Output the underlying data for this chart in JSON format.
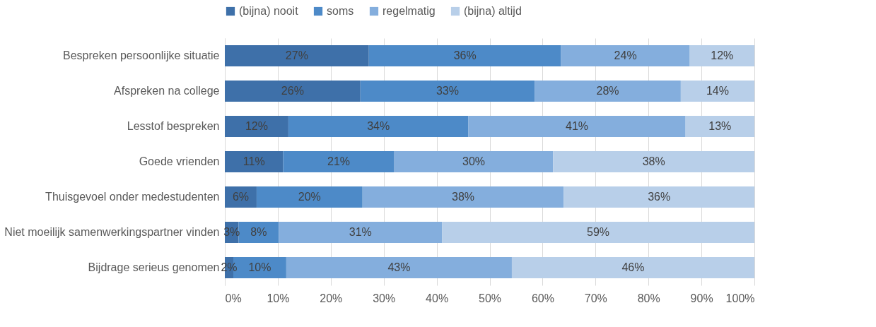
{
  "chart_data": {
    "type": "bar",
    "orientation": "horizontal",
    "stacked": true,
    "legend": "top",
    "grid": "x",
    "categories": [
      "Bespreken persoonlijke situatie",
      "Afspreken na college",
      "Lesstof bespreken",
      "Goede vrienden",
      "Thuisgevoel onder medestudenten",
      "Niet moeilijk samenwerkingspartner vinden",
      "Bijdrage serieus genomen"
    ],
    "xlim": [
      0,
      100
    ],
    "xticks": [
      {
        "value": 0,
        "label": "0%"
      },
      {
        "value": 10,
        "label": "10%"
      },
      {
        "value": 20,
        "label": "20%"
      },
      {
        "value": 30,
        "label": "30%"
      },
      {
        "value": 40,
        "label": "40%"
      },
      {
        "value": 50,
        "label": "50%"
      },
      {
        "value": 60,
        "label": "60%"
      },
      {
        "value": 70,
        "label": "70%"
      },
      {
        "value": 80,
        "label": "80%"
      },
      {
        "value": 90,
        "label": "90%"
      },
      {
        "value": 100,
        "label": "100%"
      }
    ],
    "series": [
      {
        "name": "(bijna) nooit",
        "color": "#3e70a9",
        "values": [
          27.2,
          25.6,
          12,
          11,
          6,
          2.6,
          1.6
        ],
        "value_labels": [
          "27%",
          "26%",
          "12%",
          "11%",
          "6%",
          "3%",
          "2%"
        ]
      },
      {
        "name": "soms",
        "color": "#4d8ac8",
        "values": [
          36.3,
          32.9,
          34,
          21,
          20,
          7.6,
          10
        ],
        "value_labels": [
          "36%",
          "33%",
          "34%",
          "21%",
          "20%",
          "8%",
          "10%"
        ]
      },
      {
        "name": "regelmatig",
        "color": "#84aedd",
        "values": [
          24.3,
          27.6,
          41,
          30,
          38,
          30.8,
          42.6
        ],
        "value_labels": [
          "24%",
          "28%",
          "41%",
          "30%",
          "38%",
          "31%",
          "43%"
        ]
      },
      {
        "name": "(bijna) altijd",
        "color": "#b8cfe9",
        "values": [
          12.2,
          13.9,
          13,
          38,
          36,
          59,
          45.8
        ],
        "value_labels": [
          "12%",
          "14%",
          "13%",
          "38%",
          "36%",
          "59%",
          "46%"
        ]
      }
    ]
  }
}
